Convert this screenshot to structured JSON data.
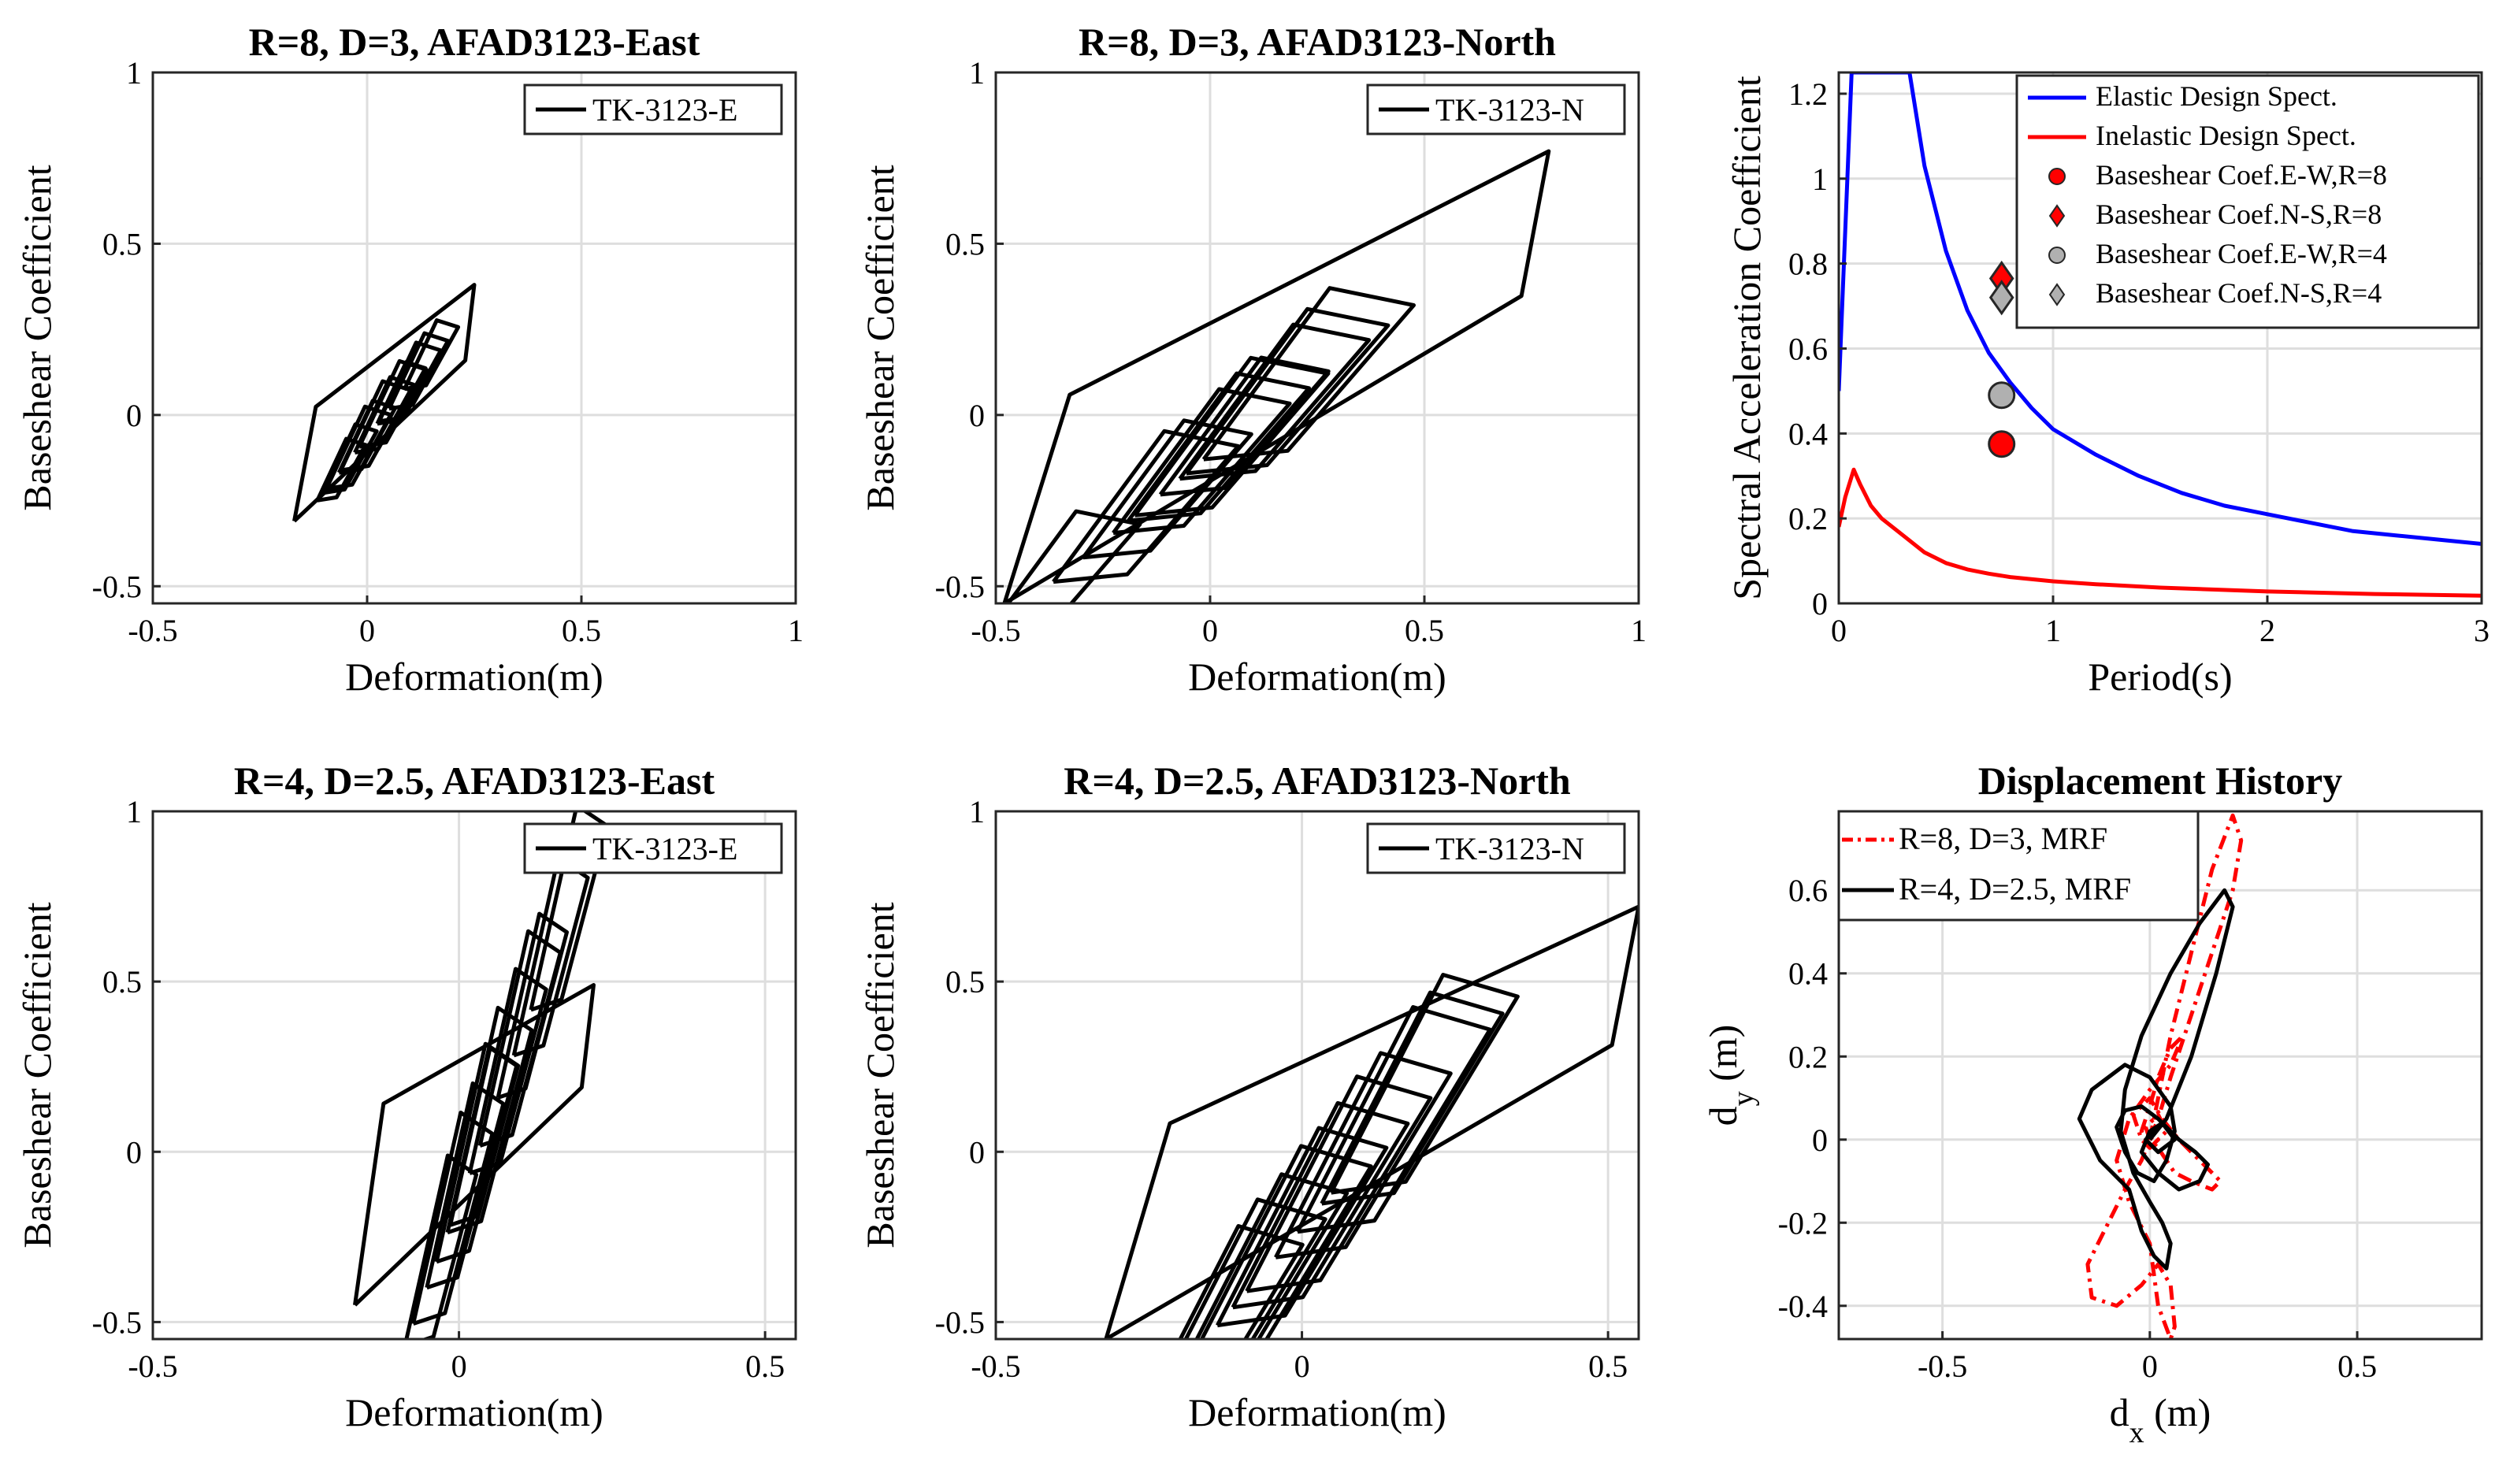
{
  "chart_data": [
    {
      "id": "p1",
      "type": "line",
      "title": "R=8, D=3, AFAD3123-East",
      "xlabel": "Deformation(m)",
      "ylabel": "Baseshear Coefficient",
      "xlim": [
        -0.5,
        1
      ],
      "ylim": [
        -0.55,
        1
      ],
      "xticks": [
        -0.5,
        0,
        0.5,
        1
      ],
      "xtick_labels": [
        "-0.5",
        "0",
        "0.5",
        "1"
      ],
      "yticks": [
        -0.5,
        0,
        0.5,
        1
      ],
      "ytick_labels": [
        "-0.5",
        "0",
        "0.5",
        "1"
      ],
      "grid": true,
      "legend_position": "top-right",
      "series": [
        {
          "name": "TK-3123-E",
          "color": "#000000",
          "loop": {
            "x_min": -0.17,
            "x_max": 0.25,
            "y_min": -0.31,
            "y_max": 0.38,
            "k": 1.6,
            "cy": 0.12
          },
          "inner_cycles": [
            [
              0.02,
              0.26
            ],
            [
              -0.02,
              0.24
            ],
            [
              0.04,
              0.22
            ],
            [
              0.06,
              0.25
            ],
            [
              -0.04,
              0.2
            ],
            [
              0.1,
              0.23
            ],
            [
              0.12,
              0.22
            ],
            [
              0.15,
              0.2
            ],
            [
              0.08,
              0.18
            ],
            [
              0.0,
              0.21
            ],
            [
              -0.06,
              0.18
            ]
          ]
        }
      ]
    },
    {
      "id": "p2",
      "type": "line",
      "title": "R=8, D=3, AFAD3123-North",
      "xlabel": "Deformation(m)",
      "ylabel": "Baseshear Coefficient",
      "xlim": [
        -0.5,
        1
      ],
      "ylim": [
        -0.55,
        1
      ],
      "xticks": [
        -0.5,
        0,
        0.5,
        1
      ],
      "xtick_labels": [
        "-0.5",
        "0",
        "0.5",
        "1"
      ],
      "yticks": [
        -0.5,
        0,
        0.5,
        1
      ],
      "ytick_labels": [
        "-0.5",
        "0",
        "0.5",
        "1"
      ],
      "grid": true,
      "legend_position": "top-right",
      "series": [
        {
          "name": "TK-3123-N",
          "color": "#000000",
          "loop": {
            "x_min": -0.48,
            "x_max": 0.79,
            "y_min": -0.55,
            "y_max": 0.77,
            "k": 1.02,
            "cy": 0.2
          },
          "inner_cycles": [
            [
              0.23,
              0.5
            ],
            [
              0.15,
              0.45
            ],
            [
              0.02,
              0.43
            ],
            [
              -0.02,
              0.42
            ],
            [
              0.05,
              0.46
            ],
            [
              -0.1,
              0.4
            ],
            [
              -0.15,
              0.44
            ],
            [
              -0.35,
              0.38
            ],
            [
              0.18,
              0.48
            ],
            [
              0.08,
              0.4
            ]
          ]
        }
      ]
    },
    {
      "id": "p3",
      "type": "line",
      "title": "",
      "xlabel": "Period(s)",
      "ylabel": "Spectral Acceleration Coefficient",
      "xlim": [
        0,
        3
      ],
      "ylim": [
        0,
        1.25
      ],
      "xticks": [
        0,
        1,
        2,
        3
      ],
      "xtick_labels": [
        "0",
        "1",
        "2",
        "3"
      ],
      "yticks": [
        0,
        0.2,
        0.4,
        0.6,
        0.8,
        1,
        1.2
      ],
      "ytick_labels": [
        "0",
        "0.2",
        "0.4",
        "0.6",
        "0.8",
        "1",
        "1.2"
      ],
      "grid": true,
      "legend_position": "top-right",
      "series": [
        {
          "name": "Elastic Design Spect.",
          "color": "#0000ff",
          "kind": "spectrum",
          "x": [
            0,
            0.02,
            0.04,
            0.06,
            0.07,
            0.1,
            0.2,
            0.33,
            0.4,
            0.5,
            0.6,
            0.7,
            0.8,
            0.9,
            1.0,
            1.2,
            1.4,
            1.6,
            1.8,
            2.0,
            2.2,
            2.4,
            2.6,
            2.8,
            3.0
          ],
          "y": [
            0.5,
            0.75,
            1.0,
            1.25,
            1.25,
            1.25,
            1.25,
            1.25,
            1.03,
            0.83,
            0.69,
            0.59,
            0.52,
            0.46,
            0.41,
            0.35,
            0.3,
            0.26,
            0.23,
            0.21,
            0.19,
            0.17,
            0.16,
            0.15,
            0.14
          ]
        },
        {
          "name": "Inelastic Design Spect.",
          "color": "#ff0000",
          "kind": "spectrum",
          "x": [
            0,
            0.03,
            0.07,
            0.1,
            0.15,
            0.2,
            0.3,
            0.4,
            0.5,
            0.6,
            0.7,
            0.8,
            1.0,
            1.2,
            1.5,
            2.0,
            2.5,
            3.0
          ],
          "y": [
            0.18,
            0.25,
            0.315,
            0.28,
            0.23,
            0.2,
            0.16,
            0.12,
            0.095,
            0.08,
            0.07,
            0.062,
            0.052,
            0.045,
            0.037,
            0.028,
            0.022,
            0.018
          ]
        },
        {
          "name": "Baseshear Coef.E-W,R=8",
          "color": "#ff0000",
          "kind": "marker",
          "marker": "circle",
          "x": [
            0.76
          ],
          "y": [
            0.375
          ]
        },
        {
          "name": "Baseshear Coef.N-S,R=8",
          "color": "#ff0000",
          "kind": "marker",
          "marker": "diamond",
          "x": [
            0.76
          ],
          "y": [
            0.765
          ]
        },
        {
          "name": "Baseshear Coef.E-W,R=4",
          "color": "#b0b0b0",
          "kind": "marker",
          "marker": "circle",
          "x": [
            0.76
          ],
          "y": [
            0.49
          ]
        },
        {
          "name": "Baseshear Coef.N-S,R=4",
          "color": "#b0b0b0",
          "kind": "marker",
          "marker": "diamond",
          "x": [
            0.76
          ],
          "y": [
            0.72
          ]
        }
      ]
    },
    {
      "id": "p4",
      "type": "line",
      "title": "R=4, D=2.5, AFAD3123-East",
      "xlabel": "Deformation(m)",
      "ylabel": "Baseshear Coefficient",
      "xlim": [
        -0.5,
        0.55
      ],
      "ylim": [
        -0.55,
        1
      ],
      "xticks": [
        -0.5,
        0,
        0.5
      ],
      "xtick_labels": [
        "-0.5",
        "0",
        "0.5"
      ],
      "yticks": [
        -0.5,
        0,
        0.5,
        1
      ],
      "ytick_labels": [
        "-0.5",
        "0",
        "0.5",
        "1"
      ],
      "grid": true,
      "legend_position": "top-right",
      "series": [
        {
          "name": "TK-3123-E",
          "color": "#000000",
          "loop": {
            "x_min": -0.17,
            "x_max": 0.22,
            "y_min": -0.45,
            "y_max": 0.49,
            "k": 4.8,
            "cy": 0.3
          },
          "inner_cycles": [
            [
              0.03,
              0.64
            ],
            [
              0.01,
              0.6
            ],
            [
              -0.01,
              0.62
            ],
            [
              0.05,
              0.66
            ],
            [
              0.08,
              0.6
            ],
            [
              0.1,
              0.63
            ],
            [
              0.15,
              0.58
            ],
            [
              0.18,
              0.6
            ],
            [
              -0.03,
              0.56
            ],
            [
              0.04,
              0.52
            ],
            [
              0.12,
              0.54
            ]
          ]
        }
      ]
    },
    {
      "id": "p5",
      "type": "line",
      "title": "R=4, D=2.5, AFAD3123-North",
      "xlabel": "Deformation(m)",
      "ylabel": "Baseshear Coefficient",
      "xlim": [
        -0.5,
        0.55
      ],
      "ylim": [
        -0.55,
        1
      ],
      "xticks": [
        -0.5,
        0,
        0.5
      ],
      "xtick_labels": [
        "-0.5",
        "0",
        "0.5"
      ],
      "yticks": [
        -0.5,
        0,
        0.5,
        1
      ],
      "ytick_labels": [
        "-0.5",
        "0",
        "0.5",
        "1"
      ],
      "grid": true,
      "legend_position": "top-right",
      "series": [
        {
          "name": "TK-3123-N",
          "color": "#000000",
          "loop": {
            "x_min": -0.32,
            "x_max": 0.55,
            "y_min": -0.55,
            "y_max": 0.72,
            "k": 2.1,
            "cy": 0.24
          },
          "inner_cycles": [
            [
              0.2,
              0.64
            ],
            [
              0.18,
              0.62
            ],
            [
              0.15,
              0.66
            ],
            [
              0.1,
              0.6
            ],
            [
              0.06,
              0.63
            ],
            [
              0.03,
              0.6
            ],
            [
              0.0,
              0.58
            ],
            [
              -0.03,
              0.6
            ],
            [
              -0.06,
              0.56
            ],
            [
              -0.1,
              0.58
            ],
            [
              -0.13,
              0.55
            ]
          ]
        }
      ]
    },
    {
      "id": "p6",
      "type": "line",
      "title": "Displacement History",
      "xlabel": "d",
      "xlabel_sub": "x",
      "xlabel_unit": " (m)",
      "ylabel": "d",
      "ylabel_sub": "y",
      "ylabel_unit": " (m)",
      "xlim": [
        -0.75,
        0.8
      ],
      "ylim": [
        -0.48,
        0.79
      ],
      "xticks": [
        -0.5,
        0,
        0.5
      ],
      "xtick_labels": [
        "-0.5",
        "0",
        "0.5"
      ],
      "yticks": [
        -0.4,
        -0.2,
        0,
        0.2,
        0.4,
        0.6
      ],
      "ytick_labels": [
        "-0.4",
        "-0.2",
        "0",
        "0.2",
        "0.4",
        "0.6"
      ],
      "grid": true,
      "legend_position": "top-left",
      "series": [
        {
          "name": "R=8, D=3, MRF",
          "color": "#ff0000",
          "dash": "dashdot",
          "x": [
            0,
            0.02,
            0.05,
            0.1,
            0.15,
            0.2,
            0.22,
            0.2,
            0.15,
            0.1,
            0.05,
            0.02,
            -0.02,
            -0.06,
            -0.1,
            -0.15,
            -0.14,
            -0.08,
            -0.02,
            0.02,
            0.05,
            0.06,
            0.05,
            0.02,
            0.0,
            -0.05,
            -0.08,
            -0.05,
            0.0,
            0.05,
            0.08,
            0.05,
            0.02,
            0.0,
            -0.02,
            0.0,
            0.04,
            0.02,
            -0.01,
            0.0,
            0.02,
            0.04,
            0.06,
            0.1,
            0.15,
            0.17,
            0.12,
            0.07,
            0.03,
            0.0,
            -0.04,
            -0.02,
            0.0,
            0.02,
            0.01,
            0.0
          ],
          "y": [
            0,
            0.1,
            0.25,
            0.45,
            0.65,
            0.78,
            0.72,
            0.6,
            0.45,
            0.3,
            0.15,
            0.05,
            -0.05,
            -0.12,
            -0.2,
            -0.3,
            -0.38,
            -0.4,
            -0.35,
            -0.3,
            -0.35,
            -0.45,
            -0.48,
            -0.4,
            -0.25,
            -0.15,
            -0.05,
            0.05,
            0.12,
            0.18,
            0.25,
            0.22,
            0.15,
            0.08,
            0.02,
            -0.02,
            0.02,
            0.06,
            0.03,
            0.0,
            -0.02,
            -0.05,
            -0.08,
            -0.1,
            -0.12,
            -0.1,
            -0.05,
            0.0,
            0.05,
            0.1,
            0.06,
            0.0,
            -0.02,
            0.0,
            0.01,
            0.0
          ]
        },
        {
          "name": "R=4, D=2.5, MRF",
          "color": "#000000",
          "dash": "solid",
          "x": [
            0,
            0.04,
            0.1,
            0.16,
            0.2,
            0.18,
            0.12,
            0.05,
            -0.02,
            -0.06,
            -0.07,
            -0.04,
            0.0,
            0.03,
            0.05,
            0.04,
            0.01,
            -0.02,
            -0.05,
            -0.12,
            -0.17,
            -0.14,
            -0.06,
            0.0,
            0.05,
            0.06,
            0.04,
            0.01,
            -0.03,
            -0.06,
            -0.08,
            -0.06,
            -0.02,
            0.02,
            0.07,
            0.11,
            0.14,
            0.12,
            0.07,
            0.02,
            -0.02,
            0.0,
            0.03,
            0.06,
            0.02,
            -0.01,
            0.01,
            0.0
          ],
          "y": [
            0,
            0.05,
            0.2,
            0.4,
            0.56,
            0.6,
            0.52,
            0.4,
            0.25,
            0.12,
            0.02,
            -0.08,
            -0.15,
            -0.2,
            -0.25,
            -0.31,
            -0.28,
            -0.22,
            -0.12,
            -0.05,
            0.05,
            0.12,
            0.18,
            0.15,
            0.08,
            0.02,
            -0.05,
            -0.1,
            -0.08,
            -0.03,
            0.03,
            0.07,
            0.08,
            0.05,
            0.0,
            -0.03,
            -0.06,
            -0.1,
            -0.12,
            -0.08,
            -0.03,
            0.02,
            0.04,
            0.0,
            -0.03,
            0.0,
            0.02,
            0.0
          ]
        }
      ]
    }
  ]
}
